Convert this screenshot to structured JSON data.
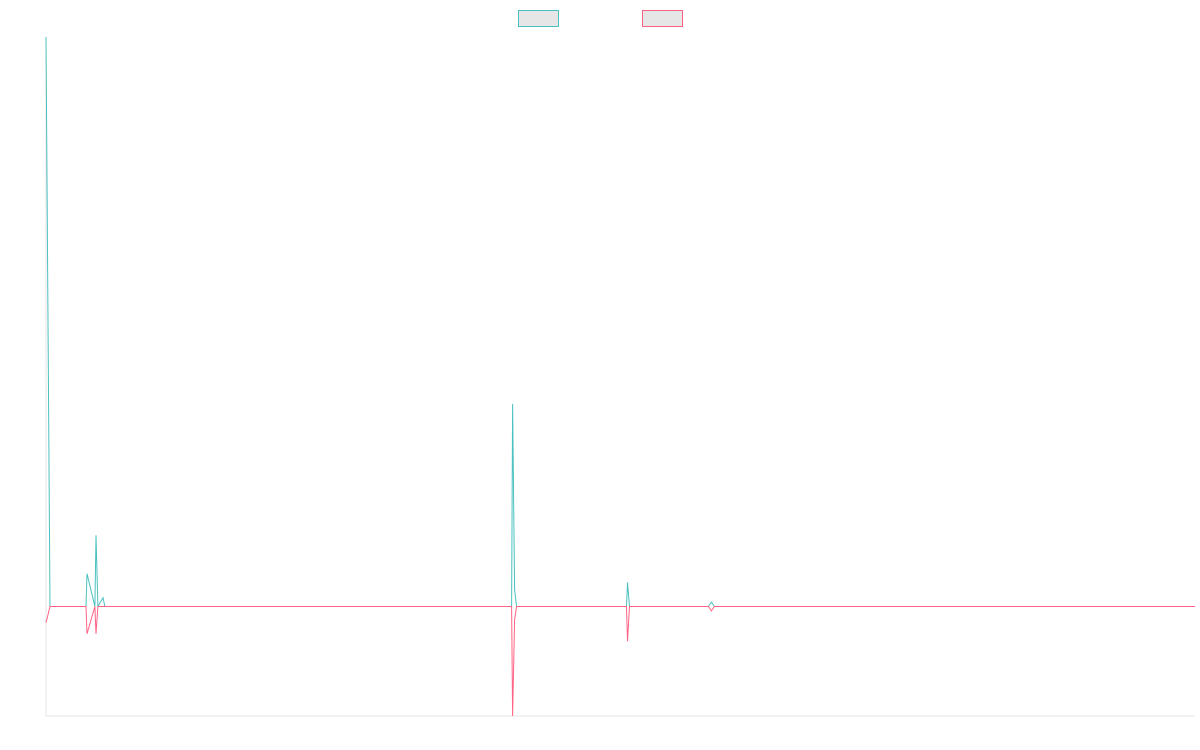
{
  "chart_data": {
    "type": "line",
    "title": "",
    "xlabel": "",
    "ylabel": "",
    "grid": false,
    "legend_position": "top-center",
    "xlim": [
      0,
      1000
    ],
    "ylim": [
      -100,
      520
    ],
    "series": [
      {
        "color": "#4bc0c0",
        "fill": "#e6e6e6",
        "points": [
          [
            0,
            520
          ],
          [
            3.5,
            0
          ],
          [
            34.8,
            0
          ],
          [
            35.7,
            30
          ],
          [
            42.6,
            0
          ],
          [
            43.5,
            65
          ],
          [
            45.2,
            0
          ],
          [
            49.6,
            8
          ],
          [
            51.3,
            0
          ],
          [
            56.5,
            0
          ],
          [
            58.3,
            0
          ],
          [
            402.6,
            0
          ],
          [
            405.2,
            0
          ],
          [
            406.1,
            185
          ],
          [
            407.8,
            15
          ],
          [
            409.6,
            0
          ],
          [
            503.5,
            0
          ],
          [
            505.2,
            0
          ],
          [
            506.1,
            22
          ],
          [
            507.8,
            0
          ],
          [
            576.5,
            0
          ],
          [
            579.1,
            4
          ],
          [
            581.7,
            0
          ],
          [
            1000,
            0
          ]
        ]
      },
      {
        "color": "#ff6384",
        "fill": "#e6e6e6",
        "points": [
          [
            0,
            -15
          ],
          [
            3.5,
            0
          ],
          [
            34.8,
            0
          ],
          [
            35.7,
            -25
          ],
          [
            42.6,
            0
          ],
          [
            43.5,
            -25
          ],
          [
            45.2,
            0
          ],
          [
            49.6,
            0
          ],
          [
            51.3,
            0
          ],
          [
            56.5,
            0
          ],
          [
            58.3,
            0
          ],
          [
            402.6,
            0
          ],
          [
            405.2,
            0
          ],
          [
            406.1,
            -100
          ],
          [
            407.8,
            -12
          ],
          [
            409.6,
            0
          ],
          [
            503.5,
            0
          ],
          [
            505.2,
            0
          ],
          [
            506.1,
            -32
          ],
          [
            507.8,
            0
          ],
          [
            576.5,
            0
          ],
          [
            579.1,
            -4
          ],
          [
            581.7,
            0
          ],
          [
            1000,
            0
          ]
        ]
      }
    ]
  }
}
